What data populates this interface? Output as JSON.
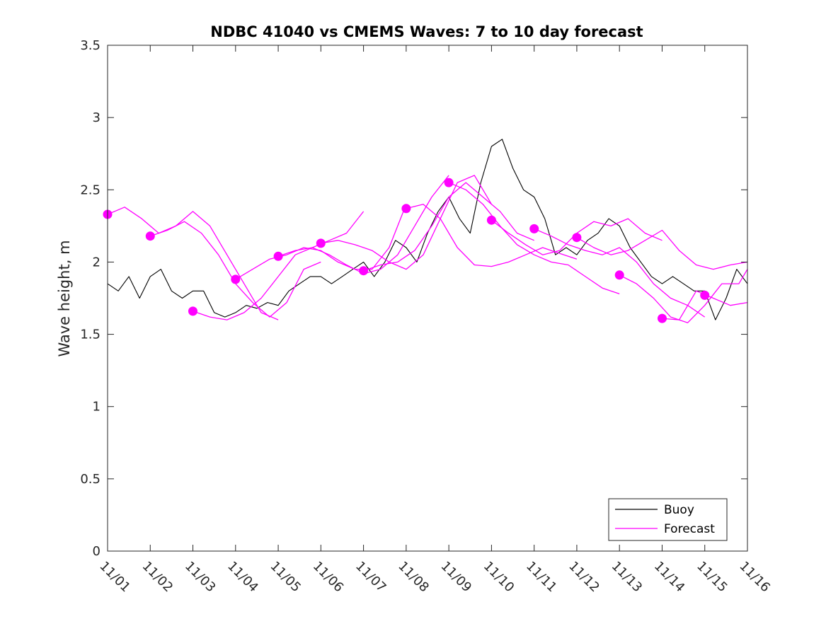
{
  "chart_data": {
    "type": "line",
    "title": "NDBC 41040 vs CMEMS Waves: 7 to 10 day forecast",
    "xlabel": "",
    "ylabel": "Wave height, m",
    "xlim": [
      0,
      15
    ],
    "ylim": [
      0,
      3.5
    ],
    "x_tick_labels": [
      "11/01",
      "11/02",
      "11/03",
      "11/04",
      "11/05",
      "11/06",
      "11/07",
      "11/08",
      "11/09",
      "11/10",
      "11/11",
      "11/12",
      "11/13",
      "11/14",
      "11/15",
      "11/16"
    ],
    "y_ticks": [
      0,
      0.5,
      1,
      1.5,
      2,
      2.5,
      3,
      3.5
    ],
    "y_tick_labels": [
      "0",
      "0.5",
      "1",
      "1.5",
      "2",
      "2.5",
      "3",
      "3.5"
    ],
    "legend": {
      "position": "bottom-right",
      "entries": [
        "Buoy",
        "Forecast"
      ]
    },
    "colors": {
      "buoy": "#000000",
      "forecast": "#ff00ff"
    },
    "series": [
      {
        "name": "Buoy",
        "x": [
          0.0,
          0.25,
          0.5,
          0.75,
          1.0,
          1.25,
          1.5,
          1.75,
          2.0,
          2.25,
          2.5,
          2.75,
          3.0,
          3.25,
          3.5,
          3.75,
          4.0,
          4.25,
          4.5,
          4.75,
          5.0,
          5.25,
          5.5,
          5.75,
          6.0,
          6.25,
          6.5,
          6.75,
          7.0,
          7.25,
          7.5,
          7.75,
          8.0,
          8.25,
          8.5,
          8.75,
          9.0,
          9.25,
          9.5,
          9.75,
          10.0,
          10.25,
          10.5,
          10.75,
          11.0,
          11.25,
          11.5,
          11.75,
          12.0,
          12.25,
          12.5,
          12.75,
          13.0,
          13.25,
          13.5,
          13.75,
          14.0,
          14.25,
          14.5,
          14.75,
          15.0
        ],
        "values": [
          1.85,
          1.8,
          1.9,
          1.75,
          1.9,
          1.95,
          1.8,
          1.75,
          1.8,
          1.8,
          1.65,
          1.62,
          1.65,
          1.7,
          1.68,
          1.72,
          1.7,
          1.8,
          1.85,
          1.9,
          1.9,
          1.85,
          1.9,
          1.95,
          2.0,
          1.9,
          2.0,
          2.15,
          2.1,
          2.0,
          2.2,
          2.35,
          2.45,
          2.3,
          2.2,
          2.55,
          2.8,
          2.85,
          2.65,
          2.5,
          2.45,
          2.3,
          2.05,
          2.1,
          2.05,
          2.15,
          2.2,
          2.3,
          2.25,
          2.1,
          2.0,
          1.9,
          1.85,
          1.9,
          1.85,
          1.8,
          1.8,
          1.6,
          1.75,
          1.95,
          1.85
        ]
      },
      {
        "name": "Forecast",
        "x": [
          0.0,
          0.4,
          0.8,
          1.2,
          1.6,
          2.0,
          2.4,
          2.8,
          3.2,
          3.6,
          4.0
        ],
        "values": [
          2.33,
          2.38,
          2.3,
          2.2,
          2.25,
          2.35,
          2.25,
          2.05,
          1.85,
          1.65,
          1.6
        ]
      },
      {
        "name": "Forecast",
        "x": [
          1.0,
          1.4,
          1.8,
          2.2,
          2.6,
          3.0,
          3.4,
          3.8,
          4.2,
          4.6,
          5.0
        ],
        "values": [
          2.18,
          2.22,
          2.28,
          2.2,
          2.05,
          1.85,
          1.72,
          1.62,
          1.72,
          1.95,
          2.0
        ]
      },
      {
        "name": "Forecast",
        "x": [
          2.0,
          2.4,
          2.8,
          3.2,
          3.6,
          4.0,
          4.4,
          4.8,
          5.2,
          5.6,
          6.0
        ],
        "values": [
          1.66,
          1.62,
          1.6,
          1.65,
          1.75,
          1.9,
          2.05,
          2.1,
          2.15,
          2.2,
          2.35
        ]
      },
      {
        "name": "Forecast",
        "x": [
          3.0,
          3.4,
          3.8,
          4.2,
          4.6,
          5.0,
          5.4,
          5.8,
          6.2,
          6.6,
          7.0
        ],
        "values": [
          1.88,
          1.95,
          2.02,
          2.05,
          2.1,
          2.08,
          2.0,
          1.95,
          1.95,
          2.1,
          2.4
        ]
      },
      {
        "name": "Forecast",
        "x": [
          4.0,
          4.4,
          4.8,
          5.2,
          5.6,
          6.0,
          6.4,
          6.8,
          7.2,
          7.6,
          8.0
        ],
        "values": [
          2.04,
          2.08,
          2.1,
          2.05,
          1.98,
          1.92,
          1.95,
          2.05,
          2.25,
          2.45,
          2.6
        ]
      },
      {
        "name": "Forecast",
        "x": [
          5.0,
          5.4,
          5.8,
          6.2,
          6.6,
          7.0,
          7.4,
          7.8,
          8.2,
          8.6,
          9.0
        ],
        "values": [
          2.13,
          2.15,
          2.12,
          2.08,
          2.0,
          1.95,
          2.05,
          2.3,
          2.55,
          2.6,
          2.4
        ]
      },
      {
        "name": "Forecast",
        "x": [
          6.0,
          6.4,
          6.8,
          7.2,
          7.6,
          8.0,
          8.4,
          8.8,
          9.2,
          9.6,
          10.0
        ],
        "values": [
          1.94,
          1.98,
          2.0,
          2.08,
          2.25,
          2.45,
          2.55,
          2.45,
          2.35,
          2.2,
          2.15
        ]
      },
      {
        "name": "Forecast",
        "x": [
          7.0,
          7.4,
          7.8,
          8.2,
          8.6,
          9.0,
          9.4,
          9.8,
          10.2,
          10.6,
          11.0
        ],
        "values": [
          2.37,
          2.4,
          2.3,
          2.1,
          1.98,
          1.97,
          2.0,
          2.05,
          2.1,
          2.06,
          2.02
        ]
      },
      {
        "name": "Forecast",
        "x": [
          8.0,
          8.4,
          8.8,
          9.2,
          9.6,
          10.0,
          10.4,
          10.8,
          11.2,
          11.6,
          12.0
        ],
        "values": [
          2.55,
          2.5,
          2.4,
          2.25,
          2.12,
          2.05,
          2.0,
          1.98,
          1.9,
          1.82,
          1.78
        ]
      },
      {
        "name": "Forecast",
        "x": [
          9.0,
          9.4,
          9.8,
          10.2,
          10.6,
          11.0,
          11.4,
          11.8,
          12.2,
          12.6,
          13.0
        ],
        "values": [
          2.29,
          2.2,
          2.12,
          2.05,
          2.08,
          2.2,
          2.28,
          2.25,
          2.3,
          2.2,
          2.15
        ]
      },
      {
        "name": "Forecast",
        "x": [
          10.0,
          10.4,
          10.8,
          11.2,
          11.6,
          12.0,
          12.4,
          12.8,
          13.2,
          13.6,
          14.0
        ],
        "values": [
          2.23,
          2.18,
          2.12,
          2.08,
          2.05,
          2.1,
          2.0,
          1.85,
          1.75,
          1.7,
          1.62
        ]
      },
      {
        "name": "Forecast",
        "x": [
          11.0,
          11.4,
          11.8,
          12.2,
          12.6,
          13.0,
          13.4,
          13.8,
          14.2,
          14.6,
          15.0
        ],
        "values": [
          2.17,
          2.1,
          2.05,
          2.08,
          2.15,
          2.22,
          2.08,
          1.98,
          1.95,
          1.98,
          2.0
        ]
      },
      {
        "name": "Forecast",
        "x": [
          12.0,
          12.4,
          12.8,
          13.2,
          13.6,
          14.0,
          14.4,
          14.8,
          15.0
        ],
        "values": [
          1.91,
          1.85,
          1.75,
          1.62,
          1.58,
          1.7,
          1.85,
          1.85,
          1.95
        ]
      },
      {
        "name": "Forecast",
        "x": [
          13.0,
          13.4,
          13.8,
          14.2,
          14.6,
          15.0
        ],
        "values": [
          1.61,
          1.6,
          1.8,
          1.75,
          1.7,
          1.72
        ]
      }
    ],
    "forecast_start_markers": {
      "x": [
        0.0,
        1.0,
        2.0,
        3.0,
        4.0,
        5.0,
        6.0,
        7.0,
        8.0,
        9.0,
        10.0,
        11.0,
        12.0,
        13.0,
        14.0
      ],
      "values": [
        2.33,
        2.18,
        1.66,
        1.88,
        2.04,
        2.13,
        1.94,
        2.37,
        2.55,
        2.29,
        2.23,
        2.17,
        1.91,
        1.61,
        1.77
      ]
    }
  }
}
